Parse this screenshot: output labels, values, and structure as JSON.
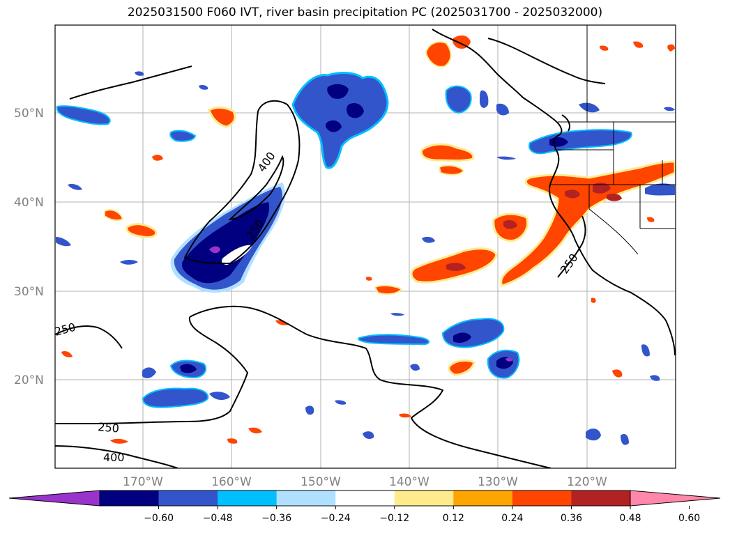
{
  "title": "2025031500 F060 IVT, river basin precipitation PC (2025031700 - 2025032000)",
  "lat_labels": [
    "50°N",
    "40°N",
    "30°N",
    "20°N"
  ],
  "lon_labels": [
    "170°W",
    "160°W",
    "150°W",
    "140°W",
    "130°W",
    "120°W"
  ],
  "ivt_contour_labels": [
    "400",
    "250",
    "250",
    "250",
    "250",
    "400"
  ],
  "colorbar": {
    "tick_labels": [
      "−0.60",
      "−0.48",
      "−0.36",
      "−0.24",
      "−0.12",
      "0.12",
      "0.24",
      "0.36",
      "0.48",
      "0.60"
    ],
    "colors": [
      "#9a33cc",
      "#000080",
      "#3355cc",
      "#00bfff",
      "#b0e0ff",
      "#ffffff",
      "#ffea8c",
      "#ffa500",
      "#ff4500",
      "#b22222",
      "#ff88aa"
    ]
  },
  "colors": {
    "negative_dark": "#000080",
    "negative_mid": "#3355cc",
    "negative_light": "#00bfff",
    "negative_pale": "#b0e0ff",
    "negative_extreme": "#9a33cc",
    "positive_pale": "#ffea8c",
    "positive_light": "#ffa500",
    "positive_mid": "#ff4500",
    "positive_dark": "#b22222",
    "grid": "#b0b0b0"
  }
}
